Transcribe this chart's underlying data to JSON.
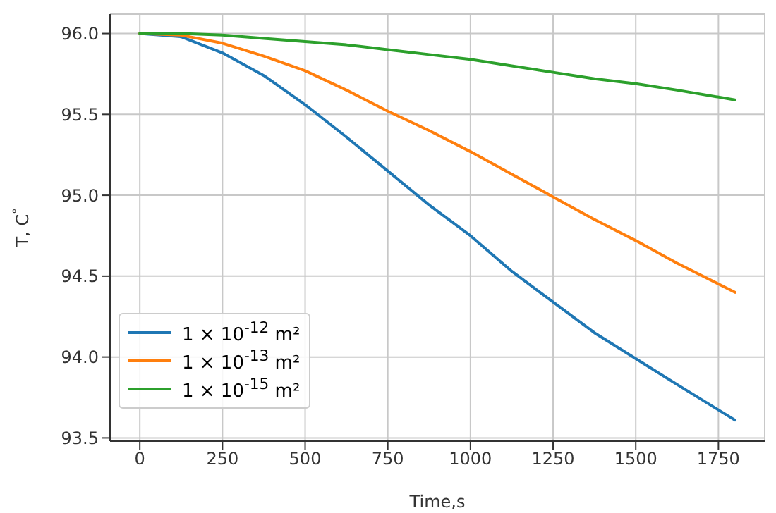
{
  "chart_data": {
    "type": "line",
    "xlabel": "Time,s",
    "ylabel": "T, C$^{°}$",
    "x": [
      0,
      125,
      250,
      375,
      500,
      625,
      750,
      875,
      1000,
      1125,
      1250,
      1375,
      1500,
      1625,
      1800
    ],
    "series": [
      {
        "name": "1 × 10$^{-12}$ m²",
        "color": "#1f77b4",
        "values": [
          96.0,
          95.98,
          95.88,
          95.74,
          95.56,
          95.36,
          95.15,
          94.94,
          94.75,
          94.53,
          94.34,
          94.15,
          93.99,
          93.83,
          93.61
        ]
      },
      {
        "name": "1 × 10$^{-13}$ m²",
        "color": "#ff7f0e",
        "values": [
          96.0,
          95.99,
          95.94,
          95.86,
          95.77,
          95.65,
          95.52,
          95.4,
          95.27,
          95.13,
          94.99,
          94.85,
          94.72,
          94.58,
          94.4
        ]
      },
      {
        "name": "1 × 10$^{-15}$ m²",
        "color": "#2ca02c",
        "values": [
          96.0,
          96.0,
          95.99,
          95.97,
          95.95,
          95.93,
          95.9,
          95.87,
          95.84,
          95.8,
          95.76,
          95.72,
          95.69,
          95.65,
          95.59
        ]
      }
    ],
    "xlim": [
      -90,
      1890
    ],
    "xticks": [
      0,
      250,
      500,
      750,
      1000,
      1250,
      1500,
      1750
    ],
    "ylim": [
      93.48,
      96.12
    ],
    "yticks": [
      {
        "value": 93.5,
        "label": "93.5"
      },
      {
        "value": 94,
        "label": "94.0"
      },
      {
        "value": 94.5,
        "label": "94.5"
      },
      {
        "value": 95,
        "label": "95.0"
      },
      {
        "value": 95.5,
        "label": "95.5"
      },
      {
        "value": 96,
        "label": "96.0"
      }
    ],
    "grid": true,
    "legend": "bottom left",
    "marker": "none",
    "line_style": "solid"
  }
}
